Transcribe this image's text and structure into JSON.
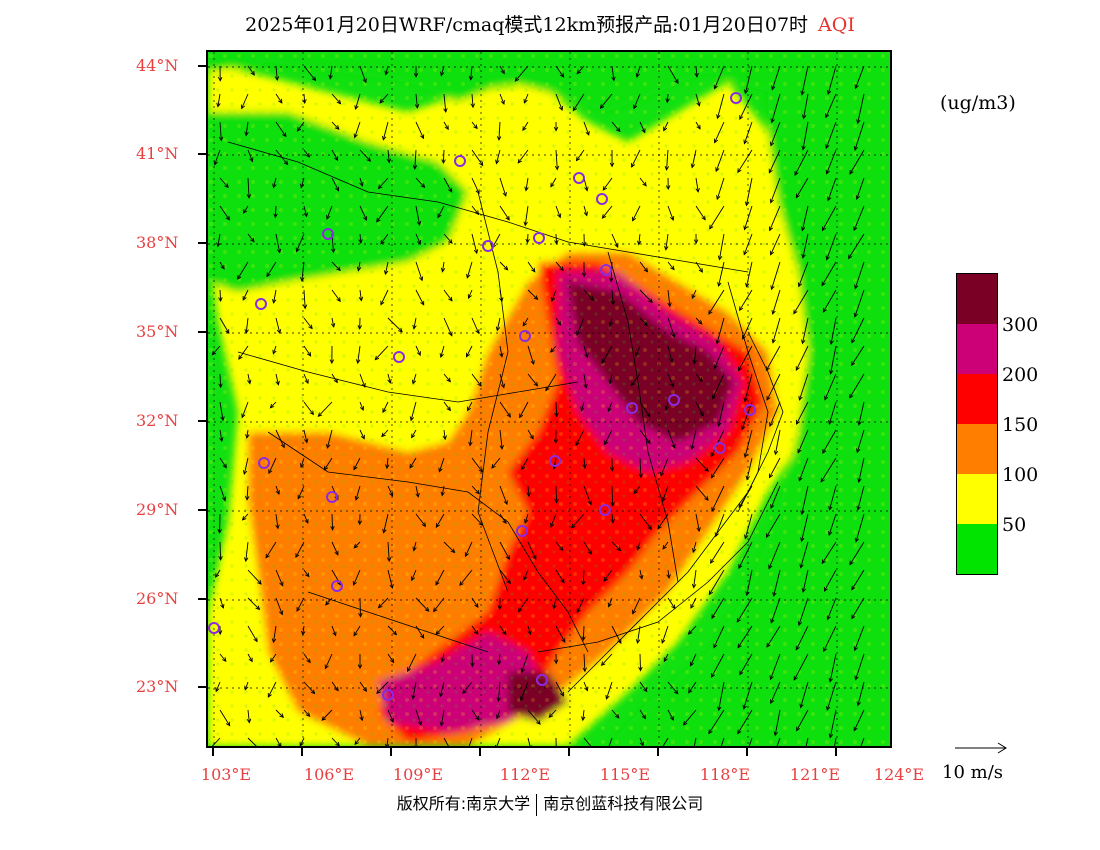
{
  "title": {
    "main": "2025年01月20日WRF/cmaq模式12km预报产品:01月20日07时",
    "variable": "AQI"
  },
  "unit_label": "(ug/m3)",
  "latitude_labels": [
    "44°N",
    "41°N",
    "38°N",
    "35°N",
    "32°N",
    "29°N",
    "26°N",
    "23°N"
  ],
  "longitude_labels": [
    "103°E",
    "106°E",
    "109°E",
    "112°E",
    "115°E",
    "118°E",
    "121°E",
    "124°E"
  ],
  "colorbar": {
    "colors": [
      "#7a0026",
      "#cc0077",
      "#ff0000",
      "#ff7e00",
      "#ffff00",
      "#00e400"
    ],
    "labels": [
      "300",
      "200",
      "150",
      "100",
      "50"
    ]
  },
  "wind_reference": {
    "label": "10 m/s"
  },
  "copyright": {
    "prefix": "版权所有:南京大学",
    "company": "南京创蓝科技有限公司"
  },
  "map_colors": {
    "good": "#11e011",
    "moderate": "#ffff00",
    "sensitive": "#ff7e00",
    "unhealthy": "#ff0000",
    "very_unhealthy": "#cc0077",
    "hazardous": "#7a0026",
    "station_marker": "#8a2be2"
  }
}
